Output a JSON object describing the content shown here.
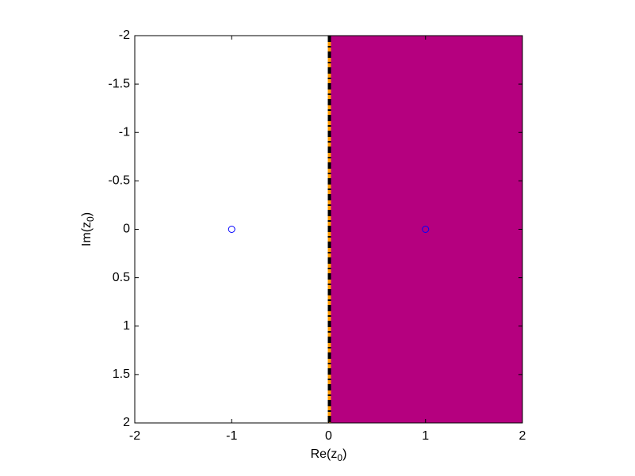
{
  "chart_data": {
    "type": "basin",
    "xlabel": "Re(z_0)",
    "ylabel": "Im(z_0)",
    "xlim": [
      -2,
      2
    ],
    "ylim": [
      -2,
      2
    ],
    "ydir": "reverse",
    "xticks": [
      -2,
      -1,
      0,
      1,
      2
    ],
    "yticks": [
      -2,
      -1.5,
      -1,
      -0.5,
      0,
      0.5,
      1,
      1.5,
      2
    ],
    "regions": [
      {
        "xrange": [
          -2,
          0
        ],
        "color": "#ffffff"
      },
      {
        "xrange": [
          0,
          2
        ],
        "color": "#b5007f"
      }
    ],
    "boundary": {
      "x": 0,
      "colors": [
        "#ff9900",
        "#000000"
      ]
    },
    "x": [
      -1,
      1
    ],
    "values": [
      0,
      0
    ],
    "color": "#0000ff"
  }
}
